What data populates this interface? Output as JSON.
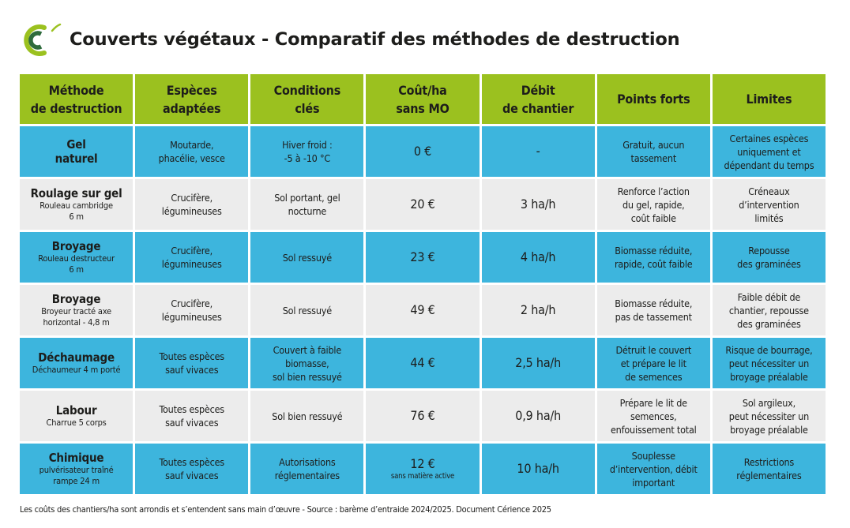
{
  "header": {
    "title": "Couverts végétaux - Comparatif des méthodes de destruction",
    "logo_icon": "cerience-c-logo",
    "colors": {
      "logo_light_green": "#9bc11f",
      "logo_dark_green": "#2e6b3c"
    }
  },
  "colors": {
    "header_bg": "#9bc11f",
    "row_blue": "#3db5dd",
    "row_grey": "#ececec",
    "text": "#1d1d1b"
  },
  "table": {
    "columns": [
      "Méthode\nde destruction",
      "Espèces\nadaptées",
      "Conditions\nclés",
      "Coût/ha\nsans MO",
      "Débit\nde chantier",
      "Points forts",
      "Limites"
    ],
    "rows": [
      {
        "method": "Gel\nnaturel",
        "equipment": "",
        "species": "Moutarde,\nphacélie, vesce",
        "conditions": "Hiver froid :\n-5 à -10 °C",
        "cost": "0 €",
        "cost_note": "",
        "rate": "-",
        "strengths": "Gratuit, aucun\ntassement",
        "limits": "Certaines espèces\nuniquement et\ndépendant du temps",
        "style": "blue"
      },
      {
        "method": "Roulage sur gel",
        "equipment": "Rouleau cambridge\n6 m",
        "species": "Crucifère,\nlégumineuses",
        "conditions": "Sol portant, gel\nnocturne",
        "cost": "20 €",
        "cost_note": "",
        "rate": "3 ha/h",
        "strengths": "Renforce l’action\ndu gel, rapide,\ncoût faible",
        "limits": "Créneaux\nd’intervention\nlimités",
        "style": "grey"
      },
      {
        "method": "Broyage",
        "equipment": "Rouleau destructeur\n6 m",
        "species": "Crucifère,\nlégumineuses",
        "conditions": "Sol ressuyé",
        "cost": "23 €",
        "cost_note": "",
        "rate": "4 ha/h",
        "strengths": "Biomasse réduite,\nrapide, coût faible",
        "limits": "Repousse\ndes graminées",
        "style": "blue"
      },
      {
        "method": "Broyage",
        "equipment": "Broyeur tracté axe\nhorizontal - 4,8 m",
        "species": "Crucifère,\nlégumineuses",
        "conditions": "Sol ressuyé",
        "cost": "49 €",
        "cost_note": "",
        "rate": "2 ha/h",
        "strengths": "Biomasse réduite,\npas de tassement",
        "limits": "Faible débit de\nchantier, repousse\ndes graminées",
        "style": "grey"
      },
      {
        "method": "Déchaumage",
        "equipment": "Déchaumeur 4 m porté",
        "species": "Toutes espèces\nsauf vivaces",
        "conditions": "Couvert à faible\nbiomasse,\nsol bien ressuyé",
        "cost": "44 €",
        "cost_note": "",
        "rate": "2,5 ha/h",
        "strengths": "Détruit le couvert\net prépare le lit\nde semences",
        "limits": "Risque de bourrage,\npeut nécessiter un\nbroyage préalable",
        "style": "blue"
      },
      {
        "method": "Labour",
        "equipment": "Charrue 5 corps",
        "species": "Toutes espèces\nsauf vivaces",
        "conditions": "Sol bien ressuyé",
        "cost": "76 €",
        "cost_note": "",
        "rate": "0,9 ha/h",
        "strengths": "Prépare le lit de\nsemences,\nenfouissement total",
        "limits": "Sol argileux,\npeut nécessiter un\nbroyage préalable",
        "style": "grey"
      },
      {
        "method": "Chimique",
        "equipment": "pulvérisateur traîné\nrampe 24 m",
        "species": "Toutes espèces\nsauf vivaces",
        "conditions": "Autorisations\nréglementaires",
        "cost": "12 €",
        "cost_note": "sans matière active",
        "rate": "10 ha/h",
        "strengths": "Souplesse\nd’intervention, débit\nimportant",
        "limits": "Restrictions\nréglementaires",
        "style": "blue"
      }
    ]
  },
  "footnote": "Les coûts des chantiers/ha sont arrondis et s’entendent sans main d’œuvre - Source : barème d’entraide 2024/2025. Document Cérience 2025"
}
